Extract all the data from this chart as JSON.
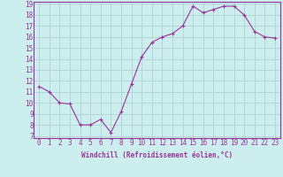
{
  "x": [
    0,
    1,
    2,
    3,
    4,
    5,
    6,
    7,
    8,
    9,
    10,
    11,
    12,
    13,
    14,
    15,
    16,
    17,
    18,
    19,
    20,
    21,
    22,
    23
  ],
  "y": [
    11.5,
    11.0,
    10.0,
    9.9,
    8.0,
    8.0,
    8.5,
    7.3,
    9.2,
    11.7,
    14.2,
    15.5,
    16.0,
    16.3,
    17.0,
    18.8,
    18.2,
    18.5,
    18.8,
    18.8,
    18.0,
    16.5,
    16.0,
    15.9
  ],
  "line_color": "#993399",
  "marker": "+",
  "marker_size": 3,
  "bg_color": "#cceeee",
  "grid_color": "#aacccc",
  "xlabel": "Windchill (Refroidissement éolien,°C)",
  "xlabel_fontsize": 5.5,
  "tick_fontsize": 5.5,
  "ylim": [
    7,
    19
  ],
  "xlim": [
    -0.5,
    23.5
  ],
  "yticks": [
    7,
    8,
    9,
    10,
    11,
    12,
    13,
    14,
    15,
    16,
    17,
    18,
    19
  ],
  "xticks": [
    0,
    1,
    2,
    3,
    4,
    5,
    6,
    7,
    8,
    9,
    10,
    11,
    12,
    13,
    14,
    15,
    16,
    17,
    18,
    19,
    20,
    21,
    22,
    23
  ]
}
